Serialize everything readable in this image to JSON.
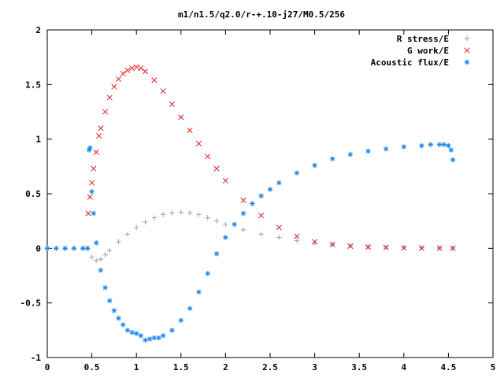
{
  "chart_data": {
    "type": "scatter",
    "title": "m1/n1.5/q2.0/r-+.10-j27/M0.5/256",
    "xlabel": "",
    "ylabel": "",
    "xlim": [
      0,
      5
    ],
    "ylim": [
      -1,
      2
    ],
    "x_ticks": [
      "0",
      "0.5",
      "1",
      "1.5",
      "2",
      "2.5",
      "3",
      "3.5",
      "4",
      "4.5",
      "5"
    ],
    "y_ticks": [
      "2",
      "1.5",
      "1",
      "0.5",
      "0",
      "-0.5",
      "-1"
    ],
    "grid": false,
    "legend_position": "top-right",
    "series": [
      {
        "name": "R stress/E",
        "color": "#a0a0a0",
        "marker": "plus",
        "x": [
          0,
          0.1,
          0.2,
          0.3,
          0.4,
          0.46,
          0.5,
          0.55,
          0.6,
          0.65,
          0.7,
          0.8,
          0.9,
          1.0,
          1.1,
          1.2,
          1.3,
          1.4,
          1.5,
          1.6,
          1.7,
          1.8,
          1.9,
          2.0,
          2.2,
          2.4,
          2.6,
          2.8,
          3.0,
          3.2,
          3.4,
          3.6,
          3.8,
          4.0,
          4.2,
          4.4,
          4.55
        ],
        "y": [
          0,
          0,
          0,
          0,
          0,
          0,
          -0.08,
          -0.11,
          -0.1,
          -0.06,
          -0.02,
          0.06,
          0.13,
          0.19,
          0.24,
          0.28,
          0.31,
          0.325,
          0.33,
          0.325,
          0.31,
          0.28,
          0.25,
          0.22,
          0.17,
          0.13,
          0.1,
          0.07,
          0.05,
          0.035,
          0.025,
          0.017,
          0.012,
          0.008,
          0.005,
          0.003,
          0.002
        ]
      },
      {
        "name": "G work/E",
        "color": "#e02020",
        "marker": "x",
        "x": [
          0.46,
          0.48,
          0.5,
          0.52,
          0.55,
          0.58,
          0.6,
          0.65,
          0.7,
          0.75,
          0.8,
          0.85,
          0.9,
          0.95,
          1.0,
          1.05,
          1.1,
          1.2,
          1.3,
          1.4,
          1.5,
          1.6,
          1.7,
          1.8,
          1.9,
          2.0,
          2.2,
          2.4,
          2.6,
          2.8,
          3.0,
          3.2,
          3.4,
          3.6,
          3.8,
          4.0,
          4.2,
          4.4,
          4.55
        ],
        "y": [
          0.32,
          0.47,
          0.6,
          0.73,
          0.88,
          1.03,
          1.1,
          1.25,
          1.38,
          1.48,
          1.55,
          1.6,
          1.63,
          1.65,
          1.66,
          1.65,
          1.62,
          1.54,
          1.44,
          1.32,
          1.2,
          1.08,
          0.96,
          0.84,
          0.73,
          0.62,
          0.44,
          0.3,
          0.19,
          0.11,
          0.06,
          0.035,
          0.02,
          0.012,
          0.008,
          0.005,
          0.003,
          0.002,
          0.001
        ]
      },
      {
        "name": "Acoustic flux/E",
        "color": "#1a86e8",
        "marker": "star",
        "x": [
          0,
          0.1,
          0.2,
          0.3,
          0.4,
          0.45,
          0.47,
          0.48,
          0.5,
          0.52,
          0.55,
          0.6,
          0.65,
          0.7,
          0.75,
          0.8,
          0.85,
          0.9,
          0.95,
          1.0,
          1.05,
          1.1,
          1.15,
          1.2,
          1.25,
          1.3,
          1.4,
          1.5,
          1.6,
          1.7,
          1.8,
          1.9,
          2.0,
          2.1,
          2.2,
          2.3,
          2.4,
          2.5,
          2.6,
          2.8,
          3.0,
          3.2,
          3.4,
          3.6,
          3.8,
          4.0,
          4.2,
          4.3,
          4.4,
          4.45,
          4.5,
          4.53,
          4.55
        ],
        "y": [
          0,
          0,
          0,
          0,
          0,
          0,
          0.9,
          0.92,
          0.52,
          0.32,
          0.05,
          -0.2,
          -0.36,
          -0.48,
          -0.57,
          -0.64,
          -0.7,
          -0.75,
          -0.77,
          -0.78,
          -0.8,
          -0.84,
          -0.83,
          -0.82,
          -0.82,
          -0.8,
          -0.75,
          -0.66,
          -0.55,
          -0.4,
          -0.23,
          -0.05,
          0.1,
          0.22,
          0.32,
          0.41,
          0.48,
          0.54,
          0.6,
          0.69,
          0.76,
          0.82,
          0.86,
          0.89,
          0.91,
          0.93,
          0.94,
          0.95,
          0.95,
          0.95,
          0.94,
          0.9,
          0.81
        ]
      }
    ]
  }
}
